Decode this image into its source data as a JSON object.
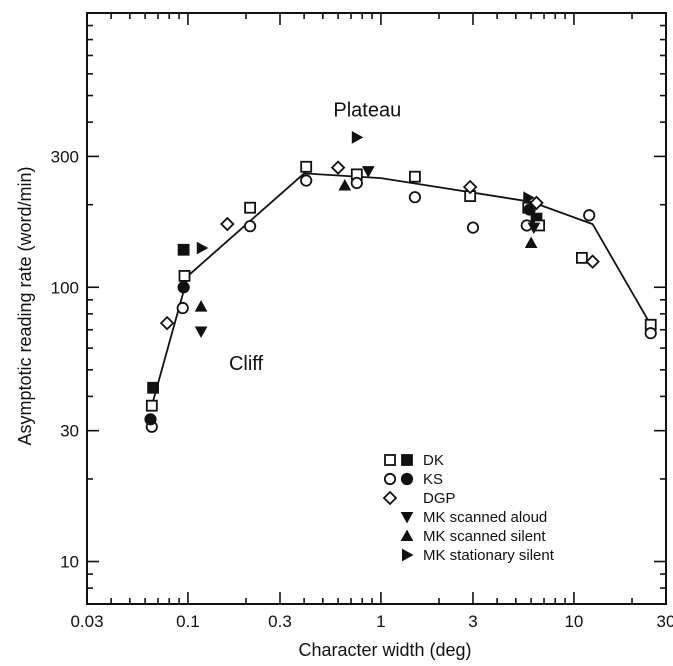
{
  "chart_data": {
    "type": "scatter",
    "xlabel": "Character width (deg)",
    "ylabel": "Asymptotic reading rate (word/min)",
    "xscale": "log",
    "yscale": "log",
    "xlim": [
      0.03,
      30
    ],
    "ylim": [
      7,
      1000
    ],
    "x_tick_labels": [
      "0.03",
      "0.1",
      "0.3",
      "1",
      "3",
      "10",
      "30"
    ],
    "x_ticks": [
      0.03,
      0.1,
      0.3,
      1,
      3,
      10,
      30
    ],
    "y_tick_labels": [
      "10",
      "30",
      "100",
      "300"
    ],
    "y_ticks": [
      10,
      30,
      100,
      300
    ],
    "annotations": [
      {
        "text": "Plateau",
        "x": 0.85,
        "y": 420
      },
      {
        "text": "Cliff",
        "x": 0.2,
        "y": 50
      }
    ],
    "fit_line": {
      "x": [
        0.065,
        0.1,
        0.4,
        1.0,
        6.0,
        12.5,
        25
      ],
      "y": [
        37,
        110,
        260,
        250,
        205,
        170,
        73
      ]
    },
    "series": [
      {
        "name": "DK",
        "marker": "square",
        "points": [
          {
            "x": 0.065,
            "y": 37,
            "filled": false
          },
          {
            "x": 0.066,
            "y": 43,
            "filled": true
          },
          {
            "x": 0.095,
            "y": 137,
            "filled": true
          },
          {
            "x": 0.096,
            "y": 110,
            "filled": false
          },
          {
            "x": 0.21,
            "y": 195,
            "filled": false
          },
          {
            "x": 0.41,
            "y": 275,
            "filled": false
          },
          {
            "x": 0.75,
            "y": 258,
            "filled": false
          },
          {
            "x": 1.5,
            "y": 253,
            "filled": false
          },
          {
            "x": 2.9,
            "y": 215,
            "filled": false
          },
          {
            "x": 5.8,
            "y": 195,
            "filled": false
          },
          {
            "x": 6.4,
            "y": 178,
            "filled": true
          },
          {
            "x": 6.6,
            "y": 168,
            "filled": false
          },
          {
            "x": 11,
            "y": 128,
            "filled": false
          },
          {
            "x": 25,
            "y": 73,
            "filled": false
          }
        ]
      },
      {
        "name": "KS",
        "marker": "circle",
        "points": [
          {
            "x": 0.065,
            "y": 31,
            "filled": false
          },
          {
            "x": 0.064,
            "y": 33,
            "filled": true
          },
          {
            "x": 0.094,
            "y": 84,
            "filled": false
          },
          {
            "x": 0.095,
            "y": 100,
            "filled": true
          },
          {
            "x": 0.21,
            "y": 167,
            "filled": false
          },
          {
            "x": 0.41,
            "y": 245,
            "filled": false
          },
          {
            "x": 0.75,
            "y": 240,
            "filled": false
          },
          {
            "x": 1.5,
            "y": 213,
            "filled": false
          },
          {
            "x": 3.0,
            "y": 165,
            "filled": false
          },
          {
            "x": 5.7,
            "y": 168,
            "filled": false
          },
          {
            "x": 5.9,
            "y": 192,
            "filled": true
          },
          {
            "x": 12,
            "y": 183,
            "filled": false
          },
          {
            "x": 25,
            "y": 68,
            "filled": false
          }
        ]
      },
      {
        "name": "DGP",
        "marker": "diamond",
        "points": [
          {
            "x": 0.078,
            "y": 74
          },
          {
            "x": 0.16,
            "y": 170
          },
          {
            "x": 0.6,
            "y": 273
          },
          {
            "x": 2.9,
            "y": 232
          },
          {
            "x": 6.4,
            "y": 203
          },
          {
            "x": 12.5,
            "y": 124
          }
        ]
      },
      {
        "name": "MK scanned aloud",
        "marker": "triangle-down",
        "points": [
          {
            "x": 0.117,
            "y": 69
          },
          {
            "x": 0.86,
            "y": 265
          },
          {
            "x": 6.2,
            "y": 165
          }
        ]
      },
      {
        "name": "MK scanned silent",
        "marker": "triangle-up",
        "points": [
          {
            "x": 0.117,
            "y": 85
          },
          {
            "x": 0.65,
            "y": 235
          },
          {
            "x": 6.0,
            "y": 145
          }
        ]
      },
      {
        "name": "MK stationary silent",
        "marker": "triangle-right",
        "points": [
          {
            "x": 0.118,
            "y": 139
          },
          {
            "x": 0.75,
            "y": 352
          },
          {
            "x": 5.8,
            "y": 212
          }
        ]
      }
    ],
    "legend": {
      "position": "bottom-right",
      "entries": [
        "DK",
        "KS",
        "DGP",
        "MK scanned aloud",
        "MK scanned silent",
        "MK stationary silent"
      ]
    }
  }
}
